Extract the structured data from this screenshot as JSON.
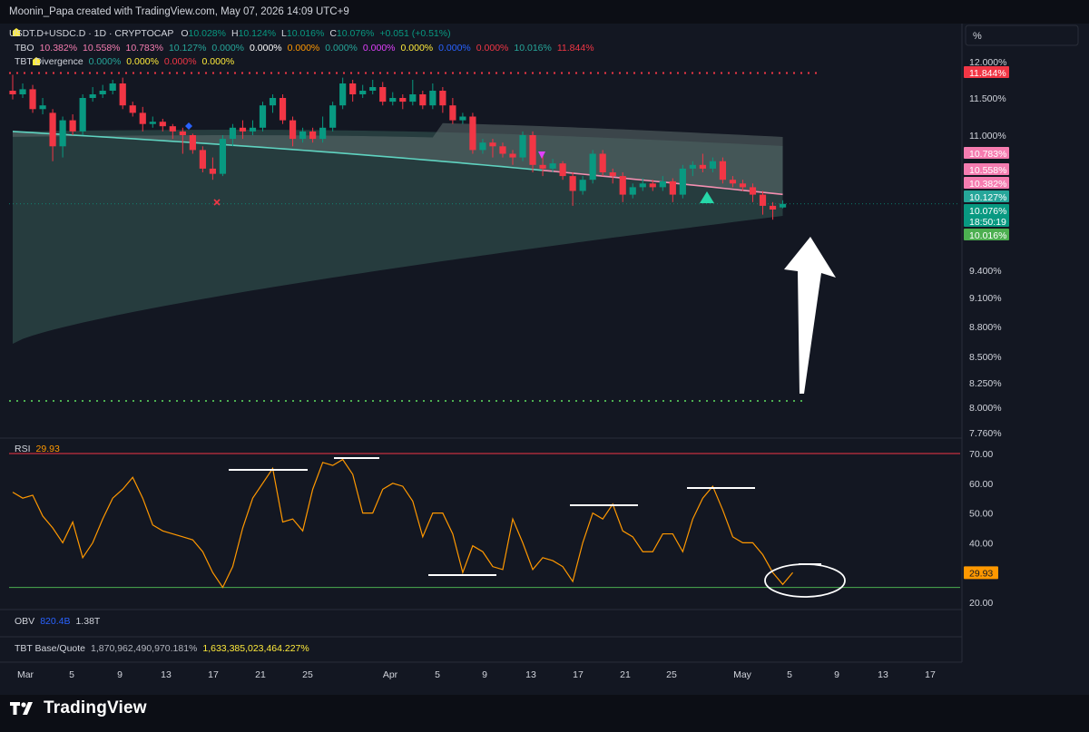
{
  "header": {
    "credit": "Moonin_Papa created with TradingView.com, May 07, 2026 14:09 UTC+9"
  },
  "legend": {
    "symbol": "USDT.D+USDC.D · 1D · CRYPTOCAP",
    "ohlc": [
      {
        "label": "O",
        "value": "10.028%"
      },
      {
        "label": "H",
        "value": "10.124%"
      },
      {
        "label": "L",
        "value": "10.016%"
      },
      {
        "label": "C",
        "value": "10.076%"
      }
    ],
    "change": "+0.051 (+0.51%)",
    "tbo": {
      "name": "TBO",
      "values": [
        "10.382%",
        "10.558%",
        "10.783%",
        "10.127%",
        "0.000%",
        "0.000%",
        "0.000%",
        "0.000%",
        "0.000%",
        "0.000%",
        "0.000%",
        "0.000%",
        "10.016%",
        "11.844%"
      ],
      "colors": [
        "#f57cb0",
        "#f57cb0",
        "#f57cb0",
        "#26a69a",
        "#26a69a",
        "#ffffff",
        "#ff9800",
        "#26a69a",
        "#e040fb",
        "#ffeb3b",
        "#2962ff",
        "#f23645",
        "#26a69a",
        "#f23645"
      ]
    },
    "divergence": {
      "name": "TBT Divergence",
      "values": [
        "0.000%",
        "0.000%",
        "0.000%",
        "0.000%"
      ],
      "colors": [
        "#26a69a",
        "#ffeb3b",
        "#f23645",
        "#ffeb3b"
      ]
    }
  },
  "toolbar": {
    "scale_button": "%"
  },
  "price_axis": {
    "ticks": [
      "12.000%",
      "11.500%",
      "11.000%",
      "9.400%",
      "9.100%",
      "8.800%",
      "8.500%",
      "8.250%",
      "8.000%",
      "7.760%"
    ],
    "badges": [
      {
        "label": "11.844%",
        "color": "#f23645"
      },
      {
        "label": "10.783%",
        "color": "#f57cb0"
      },
      {
        "label": "10.558%",
        "color": "#f57cb0"
      },
      {
        "label": "10.382%",
        "color": "#f57cb0"
      },
      {
        "label": "10.127%",
        "color": "#26a69a"
      },
      {
        "label": "10.076%",
        "color": "#089981"
      },
      {
        "label": "18:50:19",
        "color": "#089981"
      },
      {
        "label": "10.016%",
        "color": "#4caf50"
      }
    ]
  },
  "rsi": {
    "label": "RSI",
    "value": "29.93",
    "ticks": [
      "70.00",
      "60.00",
      "50.00",
      "40.00",
      "20.00"
    ],
    "badge": "29.93"
  },
  "obv": {
    "label": "OBV",
    "value1": "820.4B",
    "value2": "1.38T"
  },
  "tbt": {
    "label": "TBT Base/Quote",
    "value1": "1,870,962,490,970.181%",
    "value2": "1,633,385,023,464.227%"
  },
  "time_axis": {
    "ticks": [
      "Mar",
      "5",
      "9",
      "13",
      "17",
      "21",
      "25",
      "Apr",
      "5",
      "9",
      "13",
      "17",
      "21",
      "25",
      "May",
      "5",
      "9",
      "13",
      "17"
    ]
  },
  "brand": {
    "name": "TradingView"
  },
  "chart_data": {
    "type": "candlestick",
    "symbol": "USDT.D+USDC.D",
    "timeframe": "1D",
    "x_start": "Feb 27",
    "x_end": "May 7",
    "price_range": [
      7.76,
      12.0
    ],
    "candles": [
      [
        11.6,
        11.55,
        11.82,
        11.48
      ],
      [
        11.55,
        11.62,
        11.7,
        11.5
      ],
      [
        11.62,
        11.35,
        11.68,
        11.3
      ],
      [
        11.35,
        11.4,
        11.5,
        11.28
      ],
      [
        11.3,
        10.85,
        11.35,
        10.65
      ],
      [
        10.85,
        11.2,
        11.25,
        10.7
      ],
      [
        11.2,
        11.05,
        11.28,
        11.0
      ],
      [
        11.05,
        11.5,
        11.55,
        11.0
      ],
      [
        11.5,
        11.55,
        11.65,
        11.45
      ],
      [
        11.55,
        11.6,
        11.68,
        11.5
      ],
      [
        11.6,
        11.7,
        11.75,
        11.55
      ],
      [
        11.7,
        11.4,
        11.78,
        11.35
      ],
      [
        11.4,
        11.3,
        11.45,
        11.25
      ],
      [
        11.3,
        11.15,
        11.38,
        11.05
      ],
      [
        11.15,
        11.18,
        11.25,
        11.1
      ],
      [
        11.18,
        11.12,
        11.22,
        11.05
      ],
      [
        11.12,
        11.05,
        11.15,
        10.95
      ],
      [
        11.05,
        11.0,
        11.1,
        10.75
      ],
      [
        11.0,
        10.8,
        11.02,
        10.75
      ],
      [
        10.8,
        10.55,
        10.85,
        10.5
      ],
      [
        10.55,
        10.48,
        10.7,
        10.4
      ],
      [
        10.48,
        10.95,
        11.0,
        10.45
      ],
      [
        10.95,
        11.1,
        11.15,
        10.85
      ],
      [
        11.1,
        11.05,
        11.2,
        10.95
      ],
      [
        11.05,
        11.1,
        11.2,
        11.0
      ],
      [
        11.1,
        11.4,
        11.45,
        11.05
      ],
      [
        11.4,
        11.5,
        11.55,
        11.3
      ],
      [
        11.5,
        11.2,
        11.55,
        11.15
      ],
      [
        11.2,
        10.95,
        11.25,
        10.85
      ],
      [
        10.95,
        11.05,
        11.1,
        10.9
      ],
      [
        11.05,
        10.95,
        11.1,
        10.9
      ],
      [
        10.95,
        11.1,
        11.25,
        10.9
      ],
      [
        11.1,
        11.4,
        11.45,
        11.05
      ],
      [
        11.4,
        11.7,
        11.78,
        11.35
      ],
      [
        11.7,
        11.55,
        11.75,
        11.45
      ],
      [
        11.55,
        11.6,
        11.68,
        11.5
      ],
      [
        11.6,
        11.65,
        11.75,
        11.55
      ],
      [
        11.65,
        11.45,
        11.72,
        11.4
      ],
      [
        11.45,
        11.5,
        11.58,
        11.4
      ],
      [
        11.5,
        11.45,
        11.55,
        11.35
      ],
      [
        11.45,
        11.55,
        11.75,
        11.4
      ],
      [
        11.55,
        11.4,
        11.6,
        11.35
      ],
      [
        11.4,
        11.6,
        11.7,
        11.35
      ],
      [
        11.6,
        11.4,
        11.65,
        11.3
      ],
      [
        11.4,
        11.2,
        11.5,
        11.15
      ],
      [
        11.2,
        11.25,
        11.3,
        11.15
      ],
      [
        11.25,
        10.8,
        11.3,
        10.75
      ],
      [
        10.8,
        10.9,
        10.95,
        10.75
      ],
      [
        10.9,
        10.85,
        10.95,
        10.7
      ],
      [
        10.85,
        10.75,
        10.9,
        10.7
      ],
      [
        10.75,
        10.7,
        10.8,
        10.6
      ],
      [
        10.7,
        11.0,
        11.05,
        10.65
      ],
      [
        11.0,
        10.6,
        11.05,
        10.5
      ],
      [
        10.6,
        10.55,
        10.75,
        10.45
      ],
      [
        10.55,
        10.62,
        10.68,
        10.5
      ],
      [
        10.62,
        10.45,
        10.65,
        10.4
      ],
      [
        10.45,
        10.25,
        10.5,
        10.05
      ],
      [
        10.25,
        10.4,
        10.45,
        10.2
      ],
      [
        10.4,
        10.75,
        10.8,
        10.35
      ],
      [
        10.75,
        10.5,
        10.8,
        10.45
      ],
      [
        10.5,
        10.45,
        10.55,
        10.35
      ],
      [
        10.45,
        10.2,
        10.5,
        10.1
      ],
      [
        10.2,
        10.3,
        10.35,
        10.15
      ],
      [
        10.3,
        10.35,
        10.42,
        10.25
      ],
      [
        10.35,
        10.3,
        10.4,
        10.25
      ],
      [
        10.3,
        10.38,
        10.45,
        10.25
      ],
      [
        10.38,
        10.2,
        10.42,
        10.1
      ],
      [
        10.2,
        10.55,
        10.6,
        10.15
      ],
      [
        10.55,
        10.6,
        10.65,
        10.45
      ],
      [
        10.6,
        10.55,
        10.75,
        10.5
      ],
      [
        10.55,
        10.65,
        10.7,
        10.5
      ],
      [
        10.65,
        10.4,
        10.7,
        10.35
      ],
      [
        10.4,
        10.35,
        10.45,
        10.3
      ],
      [
        10.35,
        10.3,
        10.4,
        10.25
      ],
      [
        10.3,
        10.2,
        10.35,
        10.1
      ],
      [
        10.2,
        10.05,
        10.25,
        9.95
      ],
      [
        10.05,
        10.0,
        10.1,
        9.9
      ],
      [
        10.028,
        10.076,
        10.124,
        10.016
      ]
    ],
    "resistance_line": 11.844,
    "support_line": 8.05,
    "rsi": {
      "range": [
        20,
        70
      ],
      "levels": [
        70,
        25
      ],
      "values": [
        57,
        55,
        56,
        49,
        45,
        40,
        47,
        35,
        40,
        48,
        55,
        58,
        62,
        55,
        46,
        44,
        43,
        42,
        41,
        37,
        30,
        25,
        32,
        45,
        55,
        60,
        65,
        47,
        48,
        44,
        58,
        67,
        66,
        68,
        63,
        50,
        50,
        58,
        60,
        59,
        54,
        42,
        50,
        50,
        43,
        30,
        39,
        37,
        32,
        31,
        48,
        40,
        31,
        35,
        34,
        32,
        27,
        40,
        50,
        48,
        53,
        44,
        42,
        37,
        37,
        43,
        43,
        37,
        48,
        55,
        59,
        51,
        42,
        40,
        40,
        36,
        30,
        26,
        30
      ],
      "last": 29.93
    }
  }
}
